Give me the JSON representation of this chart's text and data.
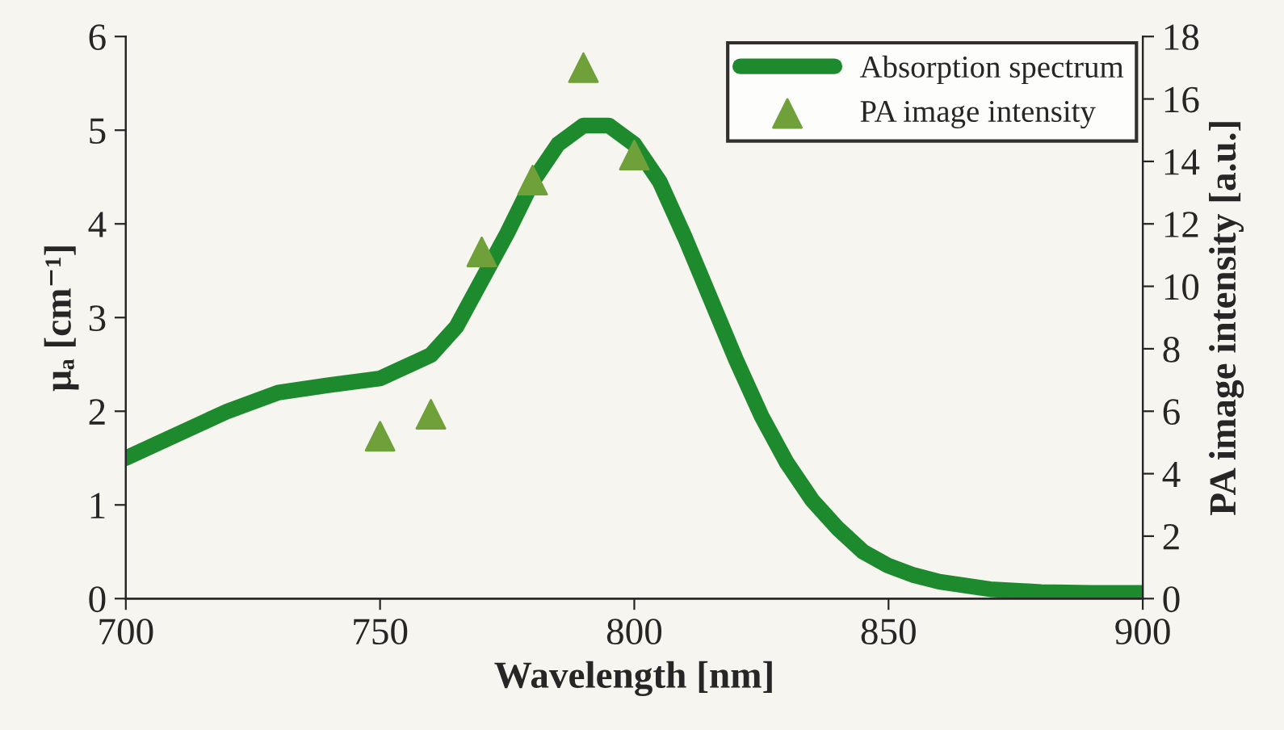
{
  "chart_data": {
    "type": "line",
    "xlabel": "Wavelength [nm]",
    "ylabel": "μₐ [cm⁻¹]",
    "y2label": "PA image intensity [a.u.]",
    "xlim": [
      700,
      900
    ],
    "xticks": [
      700,
      750,
      800,
      850,
      900
    ],
    "ylim": [
      0,
      6
    ],
    "yticks": [
      0,
      1,
      2,
      3,
      4,
      5,
      6
    ],
    "y2lim": [
      0,
      18
    ],
    "y2ticks": [
      0,
      2,
      4,
      6,
      8,
      10,
      12,
      14,
      16,
      18
    ],
    "grid": false,
    "legend": "top right",
    "series": [
      {
        "name": "Absorption spectrum",
        "color": "#1e8a2e",
        "marker": "none",
        "line_style": "solid",
        "x": [
          700,
          710,
          720,
          730,
          740,
          750,
          760,
          765,
          770,
          775,
          780,
          785,
          790,
          795,
          800,
          805,
          810,
          815,
          820,
          825,
          830,
          835,
          840,
          845,
          850,
          855,
          860,
          870,
          880,
          890,
          900
        ],
        "values": [
          1.5,
          1.75,
          2.0,
          2.2,
          2.28,
          2.35,
          2.6,
          2.9,
          3.4,
          3.9,
          4.45,
          4.85,
          5.05,
          5.05,
          4.85,
          4.45,
          3.85,
          3.2,
          2.55,
          1.95,
          1.45,
          1.05,
          0.75,
          0.5,
          0.35,
          0.25,
          0.18,
          0.1,
          0.07,
          0.06,
          0.06
        ]
      },
      {
        "name": "PA image intensity",
        "type": "scatter",
        "axis": "y2",
        "color": "#6fa03a",
        "marker": "triangle",
        "x": [
          750,
          760,
          770,
          780,
          790,
          800
        ],
        "values": [
          5.2,
          5.9,
          11.1,
          13.4,
          17.0,
          14.2
        ]
      }
    ]
  }
}
